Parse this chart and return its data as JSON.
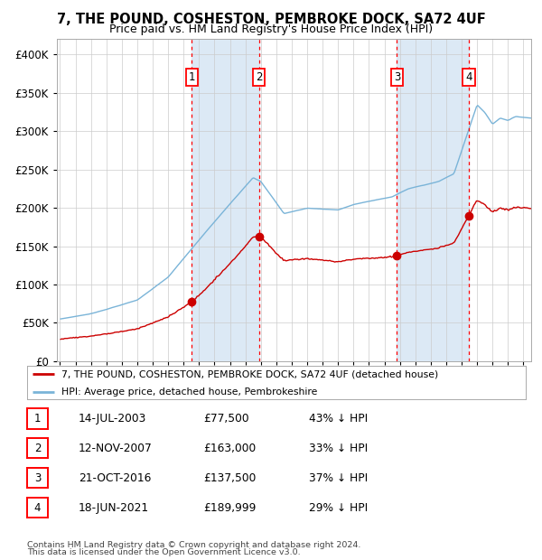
{
  "title": "7, THE POUND, COSHESTON, PEMBROKE DOCK, SA72 4UF",
  "subtitle": "Price paid vs. HM Land Registry's House Price Index (HPI)",
  "legend_label_red": "7, THE POUND, COSHESTON, PEMBROKE DOCK, SA72 4UF (detached house)",
  "legend_label_blue": "HPI: Average price, detached house, Pembrokeshire",
  "footer1": "Contains HM Land Registry data © Crown copyright and database right 2024.",
  "footer2": "This data is licensed under the Open Government Licence v3.0.",
  "sales": [
    {
      "num": 1,
      "date": "14-JUL-2003",
      "price": 77500,
      "pct": "43% ↓ HPI",
      "date_val": 2003.53
    },
    {
      "num": 2,
      "date": "12-NOV-2007",
      "price": 163000,
      "pct": "33% ↓ HPI",
      "date_val": 2007.87
    },
    {
      "num": 3,
      "date": "21-OCT-2016",
      "price": 137500,
      "pct": "37% ↓ HPI",
      "date_val": 2016.81
    },
    {
      "num": 4,
      "date": "18-JUN-2021",
      "price": 189999,
      "pct": "29% ↓ HPI",
      "date_val": 2021.46
    }
  ],
  "hpi_color": "#7ab4d8",
  "sale_color": "#cc0000",
  "shade_color": "#dce9f5",
  "plot_bg": "#ffffff",
  "ylim": [
    0,
    420000
  ],
  "yticks": [
    0,
    50000,
    100000,
    150000,
    200000,
    250000,
    300000,
    350000,
    400000
  ],
  "xmin": 1994.8,
  "xmax": 2025.5
}
